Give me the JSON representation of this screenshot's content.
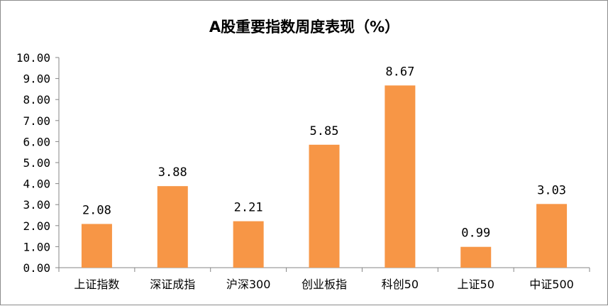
{
  "chart_data": {
    "type": "bar",
    "title": "A股重要指数周度表现（%）",
    "categories": [
      "上证指数",
      "深证成指",
      "沪深300",
      "创业板指",
      "科创50",
      "上证50",
      "中证500"
    ],
    "values": [
      2.08,
      3.88,
      2.21,
      5.85,
      8.67,
      0.99,
      3.03
    ],
    "data_labels": [
      "2.08",
      "3.88",
      "2.21",
      "5.85",
      "8.67",
      "0.99",
      "3.03"
    ],
    "ylim": [
      0,
      10
    ],
    "yticks": [
      0,
      1,
      2,
      3,
      4,
      5,
      6,
      7,
      8,
      9,
      10
    ],
    "ytick_labels": [
      "0.00",
      "1.00",
      "2.00",
      "3.00",
      "4.00",
      "5.00",
      "6.00",
      "7.00",
      "8.00",
      "9.00",
      "10.00"
    ],
    "xlabel": "",
    "ylabel": "",
    "grid": false,
    "legend": "none",
    "bar_color": "#F79646"
  }
}
